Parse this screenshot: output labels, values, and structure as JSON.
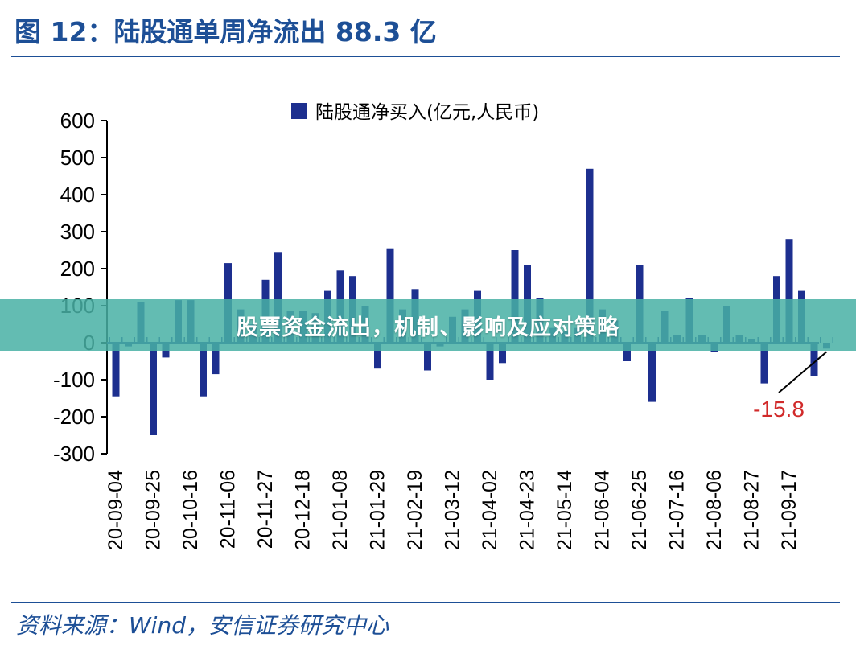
{
  "figure": {
    "title": "图 12：陆股通单周净流出 88.3 亿",
    "source": "资料来源：Wind，安信证券研究中心"
  },
  "banner": {
    "text": "股票资金流出，机制、影响及应对策略"
  },
  "chart_data": {
    "type": "bar",
    "legend": "陆股通净买入(亿元,人民币)",
    "legend_position": "top-center",
    "ylim": [
      -300,
      600
    ],
    "yticks": [
      -300,
      -200,
      -100,
      0,
      100,
      200,
      300,
      400,
      500,
      600
    ],
    "grid": false,
    "color": "#1d2f8f",
    "annotation": {
      "text": "-15.8",
      "color": "#d12a2a",
      "target_index": 57
    },
    "xtick_labels": [
      "20-09-04",
      "20-09-25",
      "20-10-16",
      "20-11-06",
      "20-11-27",
      "20-12-18",
      "21-01-08",
      "21-01-29",
      "21-02-19",
      "21-03-12",
      "21-04-02",
      "21-04-23",
      "21-05-14",
      "21-06-04",
      "21-06-25",
      "21-07-16",
      "21-08-06",
      "21-08-27",
      "21-09-17"
    ],
    "series": [
      {
        "values": [
          -145,
          -10,
          110,
          -250,
          -40,
          115,
          115,
          -145,
          -85,
          215,
          90,
          50,
          170,
          245,
          85,
          85,
          80,
          140,
          195,
          180,
          100,
          -70,
          255,
          90,
          145,
          -75,
          -10,
          70,
          90,
          140,
          -100,
          -55,
          250,
          210,
          120,
          40,
          30,
          40,
          470,
          90,
          60,
          -50,
          210,
          -160,
          85,
          20,
          120,
          20,
          -25,
          100,
          20,
          10,
          -110,
          180,
          280,
          140,
          -90,
          -15.8
        ]
      }
    ]
  }
}
